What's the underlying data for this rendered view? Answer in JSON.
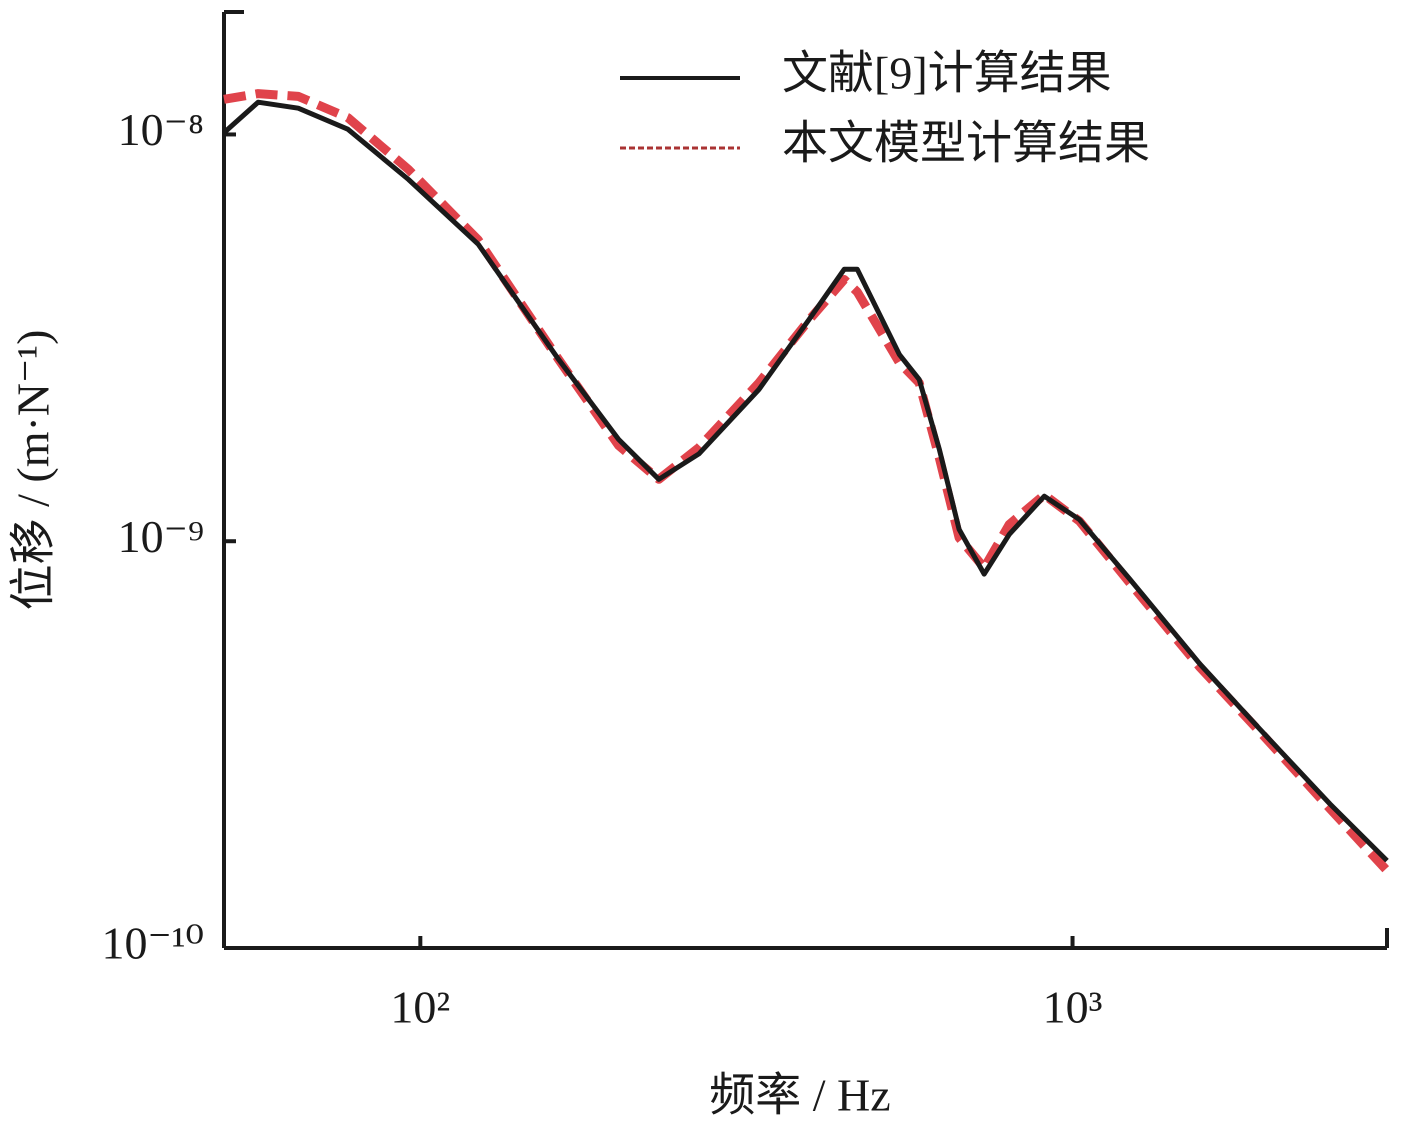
{
  "chart_data": {
    "type": "line",
    "xlabel": "频率 / Hz",
    "ylabel": "位移 / (m·N⁻¹)",
    "x": [
      50,
      56.4,
      65,
      77.4,
      95.9,
      122.7,
      162.9,
      201.4,
      232.1,
      267.5,
      330.5,
      394.5,
      446.6,
      467.7,
      542.4,
      582,
      625,
      670,
      732,
      800,
      905,
      1025,
      1224,
      1568,
      1938,
      2482,
      3035
    ],
    "series": [
      {
        "name": "文献[9]计算结果",
        "color": "#1a1a1a",
        "dashed": false,
        "values": [
          1.01e-08,
          1.2e-08,
          1.16e-08,
          1.03e-08,
          7.75e-09,
          5.37e-09,
          2.8e-09,
          1.78e-09,
          1.42e-09,
          1.64e-09,
          2.36e-09,
          3.51e-09,
          4.66e-09,
          4.66e-09,
          2.88e-09,
          2.5e-09,
          1.68e-09,
          1.07e-09,
          8.3e-10,
          1.04e-09,
          1.29e-09,
          1.13e-09,
          8.07e-10,
          4.99e-10,
          3.45e-10,
          2.26e-10,
          1.64e-10
        ]
      },
      {
        "name": "本文模型计算结果",
        "color": "#e0434b",
        "dashed": true,
        "values": [
          1.22e-08,
          1.26e-08,
          1.24e-08,
          1.1e-08,
          8.2e-09,
          5.5e-09,
          2.8e-09,
          1.72e-09,
          1.42e-09,
          1.7e-09,
          2.45e-09,
          3.5e-09,
          4.4e-09,
          4.1e-09,
          2.75e-09,
          2.45e-09,
          1.6e-09,
          1.02e-09,
          8.6e-10,
          1.1e-09,
          1.3e-09,
          1.12e-09,
          7.9e-10,
          4.9e-10,
          3.4e-10,
          2.2e-10,
          1.55e-10
        ]
      }
    ],
    "xscale": "log",
    "yscale": "log",
    "xlim": [
      50,
      3035
    ],
    "ylim": [
      1e-10,
      2e-08
    ],
    "xticks": [
      {
        "value": 100,
        "label": "10²"
      },
      {
        "value": 1000,
        "label": "10³"
      }
    ],
    "yticks": [
      {
        "value": 1e-10,
        "label": "10⁻¹⁰"
      },
      {
        "value": 1e-09,
        "label": "10⁻⁹"
      },
      {
        "value": 1e-08,
        "label": "10⁻⁸"
      }
    ],
    "legend": "upper right"
  }
}
